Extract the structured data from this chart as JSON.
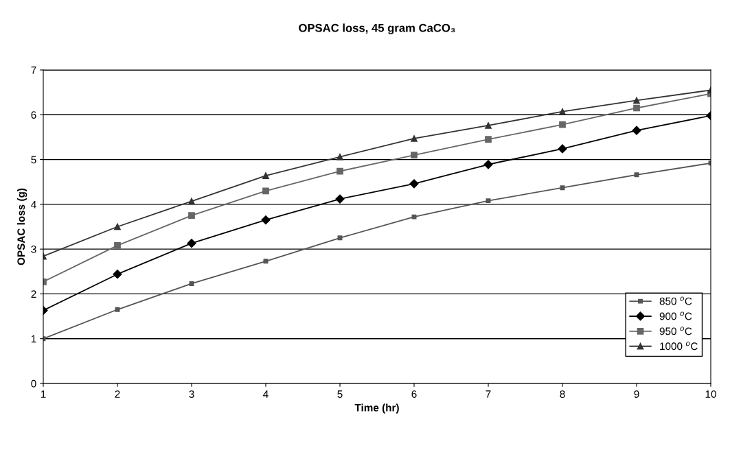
{
  "chart_data": {
    "type": "line",
    "title": "OPSAC loss, 45 gram CaCO₃",
    "xlabel": "Time (hr)",
    "ylabel": "OPSAC loss (g)",
    "x": [
      1,
      2,
      3,
      4,
      5,
      6,
      7,
      8,
      9,
      10
    ],
    "xlim": [
      1,
      10
    ],
    "xticks": [
      1,
      2,
      3,
      4,
      5,
      6,
      7,
      8,
      9,
      10
    ],
    "ylim": [
      0,
      7
    ],
    "yticks": [
      0,
      1,
      2,
      3,
      4,
      5,
      6,
      7
    ],
    "grid": "y",
    "legend": "bottom right",
    "line_style": "solid",
    "series": [
      {
        "name": "850 $^{o}$C",
        "color": "#555555",
        "marker": "square",
        "values": [
          1.0,
          1.65,
          2.23,
          2.73,
          3.25,
          3.72,
          4.08,
          4.37,
          4.66,
          4.92
        ]
      },
      {
        "name": "900 $^{o}$C",
        "color": "#000000",
        "marker": "diamond",
        "values": [
          1.63,
          2.44,
          3.13,
          3.65,
          4.12,
          4.46,
          4.89,
          5.24,
          5.65,
          5.98
        ]
      },
      {
        "name": "950 $^{o}$C",
        "color": "#666666",
        "marker": "square",
        "values": [
          2.27,
          3.08,
          3.75,
          4.3,
          4.74,
          5.1,
          5.45,
          5.78,
          6.15,
          6.47
        ]
      },
      {
        "name": "1000 $^{o}$C",
        "color": "#333333",
        "marker": "triangle",
        "values": [
          2.84,
          3.5,
          4.07,
          4.64,
          5.06,
          5.47,
          5.76,
          6.07,
          6.32,
          6.55
        ]
      }
    ]
  }
}
